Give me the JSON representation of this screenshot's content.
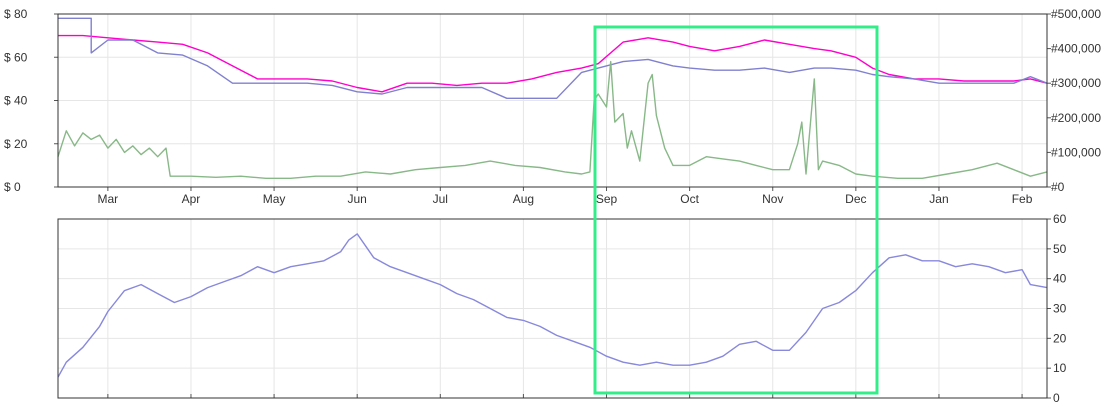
{
  "chart_data": [
    {
      "type": "line",
      "months": [
        "Mar",
        "Apr",
        "May",
        "Jun",
        "Jul",
        "Aug",
        "Sep",
        "Oct",
        "Nov",
        "Dec",
        "Jan",
        "Feb"
      ],
      "x_range_months": [
        -0.6,
        11.3
      ],
      "y_left": {
        "ticks": [
          "$ 0",
          "$ 20",
          "$ 40",
          "$ 60",
          "$ 80"
        ],
        "range": [
          0,
          80
        ]
      },
      "y_right": {
        "ticks": [
          "#0",
          "#100,000",
          "#200,000",
          "#300,000",
          "#400,000",
          "#500,000"
        ],
        "range": [
          0,
          500000
        ]
      },
      "grid": true,
      "series": [
        {
          "axis": "left",
          "color": "#ff00cc",
          "points": [
            [
              -0.6,
              70
            ],
            [
              -0.3,
              70
            ],
            [
              0.0,
              69
            ],
            [
              0.3,
              68
            ],
            [
              0.6,
              67
            ],
            [
              0.9,
              66
            ],
            [
              1.2,
              62
            ],
            [
              1.5,
              56
            ],
            [
              1.8,
              50
            ],
            [
              2.1,
              50
            ],
            [
              2.4,
              50
            ],
            [
              2.7,
              49
            ],
            [
              3.0,
              46
            ],
            [
              3.3,
              44
            ],
            [
              3.6,
              48
            ],
            [
              3.9,
              48
            ],
            [
              4.2,
              47
            ],
            [
              4.5,
              48
            ],
            [
              4.8,
              48
            ],
            [
              5.1,
              50
            ],
            [
              5.4,
              53
            ],
            [
              5.7,
              55
            ],
            [
              5.9,
              57
            ],
            [
              6.2,
              67
            ],
            [
              6.5,
              69
            ],
            [
              6.8,
              67
            ],
            [
              7.0,
              65
            ],
            [
              7.3,
              63
            ],
            [
              7.6,
              65
            ],
            [
              7.9,
              68
            ],
            [
              8.2,
              66
            ],
            [
              8.5,
              64
            ],
            [
              8.7,
              63
            ],
            [
              9.0,
              60
            ],
            [
              9.2,
              55
            ],
            [
              9.4,
              52
            ],
            [
              9.7,
              50
            ],
            [
              10.0,
              50
            ],
            [
              10.3,
              49
            ],
            [
              10.6,
              49
            ],
            [
              10.9,
              49
            ],
            [
              11.1,
              50
            ],
            [
              11.3,
              48
            ]
          ]
        },
        {
          "axis": "left",
          "color": "#8080d0",
          "points": [
            [
              -0.6,
              78
            ],
            [
              -0.2,
              78
            ],
            [
              -0.2,
              62
            ],
            [
              0.0,
              68
            ],
            [
              0.3,
              68
            ],
            [
              0.6,
              62
            ],
            [
              0.9,
              61
            ],
            [
              1.2,
              56
            ],
            [
              1.5,
              48
            ],
            [
              2.1,
              48
            ],
            [
              2.4,
              48
            ],
            [
              2.7,
              47
            ],
            [
              3.0,
              44
            ],
            [
              3.3,
              43
            ],
            [
              3.6,
              46
            ],
            [
              3.9,
              46
            ],
            [
              4.2,
              46
            ],
            [
              4.5,
              46
            ],
            [
              4.8,
              41
            ],
            [
              5.1,
              41
            ],
            [
              5.4,
              41
            ],
            [
              5.7,
              53
            ],
            [
              5.9,
              55
            ],
            [
              6.2,
              58
            ],
            [
              6.5,
              59
            ],
            [
              6.8,
              56
            ],
            [
              7.0,
              55
            ],
            [
              7.3,
              54
            ],
            [
              7.6,
              54
            ],
            [
              7.9,
              55
            ],
            [
              8.2,
              53
            ],
            [
              8.5,
              55
            ],
            [
              8.7,
              55
            ],
            [
              9.0,
              54
            ],
            [
              9.2,
              52
            ],
            [
              9.4,
              51
            ],
            [
              9.7,
              50
            ],
            [
              10.0,
              48
            ],
            [
              10.3,
              48
            ],
            [
              10.6,
              48
            ],
            [
              10.9,
              48
            ],
            [
              11.1,
              51
            ],
            [
              11.3,
              48
            ]
          ]
        },
        {
          "axis": "left",
          "color": "#88b888",
          "points": [
            [
              -0.6,
              14
            ],
            [
              -0.5,
              26
            ],
            [
              -0.4,
              19
            ],
            [
              -0.3,
              25
            ],
            [
              -0.2,
              22
            ],
            [
              -0.1,
              24
            ],
            [
              0.0,
              18
            ],
            [
              0.1,
              22
            ],
            [
              0.2,
              16
            ],
            [
              0.3,
              19
            ],
            [
              0.4,
              15
            ],
            [
              0.5,
              18
            ],
            [
              0.6,
              14
            ],
            [
              0.7,
              18
            ],
            [
              0.75,
              5
            ],
            [
              1.0,
              5
            ],
            [
              1.3,
              4.5
            ],
            [
              1.6,
              5
            ],
            [
              1.9,
              4
            ],
            [
              2.2,
              4
            ],
            [
              2.5,
              5
            ],
            [
              2.8,
              5
            ],
            [
              3.1,
              7
            ],
            [
              3.4,
              6
            ],
            [
              3.7,
              8
            ],
            [
              4.0,
              9
            ],
            [
              4.3,
              10
            ],
            [
              4.6,
              12
            ],
            [
              4.9,
              10
            ],
            [
              5.2,
              9
            ],
            [
              5.5,
              7
            ],
            [
              5.7,
              6
            ],
            [
              5.8,
              7
            ],
            [
              5.85,
              40
            ],
            [
              5.9,
              43
            ],
            [
              6.0,
              37
            ],
            [
              6.05,
              58
            ],
            [
              6.1,
              30
            ],
            [
              6.2,
              34
            ],
            [
              6.25,
              18
            ],
            [
              6.3,
              26
            ],
            [
              6.4,
              12
            ],
            [
              6.5,
              48
            ],
            [
              6.55,
              52
            ],
            [
              6.6,
              33
            ],
            [
              6.7,
              18
            ],
            [
              6.8,
              10
            ],
            [
              7.0,
              10
            ],
            [
              7.2,
              14
            ],
            [
              7.4,
              13
            ],
            [
              7.6,
              12
            ],
            [
              7.8,
              10
            ],
            [
              8.0,
              8
            ],
            [
              8.2,
              8
            ],
            [
              8.3,
              20
            ],
            [
              8.35,
              30
            ],
            [
              8.4,
              6
            ],
            [
              8.5,
              50
            ],
            [
              8.55,
              8
            ],
            [
              8.6,
              12
            ],
            [
              8.8,
              10
            ],
            [
              9.0,
              6
            ],
            [
              9.2,
              5
            ],
            [
              9.5,
              4
            ],
            [
              9.8,
              4
            ],
            [
              10.1,
              6
            ],
            [
              10.4,
              8
            ],
            [
              10.7,
              11
            ],
            [
              10.9,
              8
            ],
            [
              11.1,
              5
            ],
            [
              11.3,
              7
            ]
          ]
        }
      ]
    },
    {
      "type": "line",
      "x_range_months": [
        -0.6,
        11.3
      ],
      "y_right": {
        "ticks": [
          "0",
          "10",
          "20",
          "30",
          "40",
          "50",
          "60"
        ],
        "range": [
          0,
          60
        ]
      },
      "grid": true,
      "series": [
        {
          "axis": "right",
          "color": "#8888dd",
          "points": [
            [
              -0.6,
              7
            ],
            [
              -0.5,
              12
            ],
            [
              -0.3,
              17
            ],
            [
              -0.1,
              24
            ],
            [
              0.0,
              29
            ],
            [
              0.2,
              36
            ],
            [
              0.4,
              38
            ],
            [
              0.6,
              35
            ],
            [
              0.8,
              32
            ],
            [
              1.0,
              34
            ],
            [
              1.2,
              37
            ],
            [
              1.4,
              39
            ],
            [
              1.6,
              41
            ],
            [
              1.8,
              44
            ],
            [
              2.0,
              42
            ],
            [
              2.2,
              44
            ],
            [
              2.4,
              45
            ],
            [
              2.6,
              46
            ],
            [
              2.8,
              49
            ],
            [
              2.9,
              53
            ],
            [
              3.0,
              55
            ],
            [
              3.1,
              51
            ],
            [
              3.2,
              47
            ],
            [
              3.4,
              44
            ],
            [
              3.6,
              42
            ],
            [
              3.8,
              40
            ],
            [
              4.0,
              38
            ],
            [
              4.2,
              35
            ],
            [
              4.4,
              33
            ],
            [
              4.6,
              30
            ],
            [
              4.8,
              27
            ],
            [
              5.0,
              26
            ],
            [
              5.2,
              24
            ],
            [
              5.4,
              21
            ],
            [
              5.6,
              19
            ],
            [
              5.8,
              17
            ],
            [
              6.0,
              14
            ],
            [
              6.2,
              12
            ],
            [
              6.4,
              11
            ],
            [
              6.6,
              12
            ],
            [
              6.8,
              11
            ],
            [
              7.0,
              11
            ],
            [
              7.2,
              12
            ],
            [
              7.4,
              14
            ],
            [
              7.6,
              18
            ],
            [
              7.8,
              19
            ],
            [
              8.0,
              16
            ],
            [
              8.2,
              16
            ],
            [
              8.4,
              22
            ],
            [
              8.6,
              30
            ],
            [
              8.8,
              32
            ],
            [
              9.0,
              36
            ],
            [
              9.2,
              42
            ],
            [
              9.4,
              47
            ],
            [
              9.6,
              48
            ],
            [
              9.8,
              46
            ],
            [
              10.0,
              46
            ],
            [
              10.2,
              44
            ],
            [
              10.4,
              45
            ],
            [
              10.6,
              44
            ],
            [
              10.8,
              42
            ],
            [
              11.0,
              43
            ],
            [
              11.1,
              38
            ],
            [
              11.3,
              37
            ]
          ]
        }
      ]
    }
  ]
}
